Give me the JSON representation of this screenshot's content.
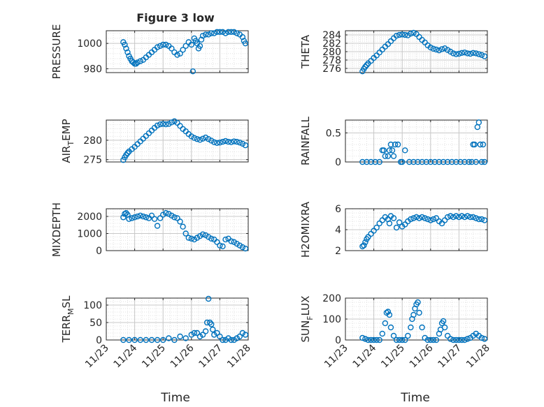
{
  "title": "Figure 3 low",
  "xlabel": "Time",
  "colors": {
    "marker": "#0072BD",
    "axis": "#262626",
    "grid": "#c8c8c8",
    "minorgrid": "#e2e2e2"
  },
  "chart_data": [
    {
      "type": "scatter",
      "ylabel": "PRESSURE",
      "ylabel_parts": [
        "PRESSURE"
      ],
      "xlim": [
        0,
        5
      ],
      "ylim": [
        977,
        1010
      ],
      "yticks": [
        980,
        1000
      ],
      "x": [
        0.6,
        0.65,
        0.7,
        0.75,
        0.8,
        0.85,
        0.9,
        0.95,
        1.0,
        1.05,
        1.1,
        1.2,
        1.3,
        1.4,
        1.5,
        1.6,
        1.7,
        1.8,
        1.9,
        2.0,
        2.1,
        2.2,
        2.3,
        2.4,
        2.5,
        2.6,
        2.7,
        2.8,
        2.9,
        3.0,
        3.05,
        3.1,
        3.15,
        3.2,
        3.25,
        3.3,
        3.35,
        3.4,
        3.5,
        3.6,
        3.7,
        3.8,
        3.9,
        4.0,
        4.1,
        4.2,
        4.3,
        4.4,
        4.5,
        4.6,
        4.7,
        4.8,
        4.85,
        4.9
      ],
      "y": [
        1001,
        999,
        996,
        993,
        990,
        988,
        986,
        985,
        984,
        984,
        985,
        986,
        987,
        989,
        991,
        993,
        995,
        997,
        998,
        999,
        999,
        998,
        996,
        993,
        991,
        992,
        995,
        998,
        1001,
        999,
        978,
        1004,
        1002,
        1000,
        996,
        998,
        1003,
        1006,
        1007,
        1007,
        1008,
        1008,
        1009,
        1009,
        1009,
        1008,
        1009,
        1009,
        1009,
        1008,
        1007,
        1005,
        1002,
        1000
      ]
    },
    {
      "type": "scatter",
      "ylabel": "THETA",
      "ylabel_parts": [
        "THETA"
      ],
      "xlim": [
        0,
        5
      ],
      "ylim": [
        275,
        285
      ],
      "yticks": [
        276,
        278,
        280,
        282,
        284
      ],
      "x": [
        0.6,
        0.65,
        0.7,
        0.75,
        0.8,
        0.9,
        1.0,
        1.1,
        1.2,
        1.3,
        1.4,
        1.5,
        1.6,
        1.7,
        1.8,
        1.9,
        2.0,
        2.1,
        2.2,
        2.3,
        2.4,
        2.5,
        2.6,
        2.7,
        2.8,
        2.9,
        3.0,
        3.1,
        3.2,
        3.3,
        3.4,
        3.5,
        3.6,
        3.7,
        3.8,
        3.9,
        4.0,
        4.1,
        4.2,
        4.3,
        4.4,
        4.5,
        4.6,
        4.7,
        4.8,
        4.9
      ],
      "y": [
        275.3,
        275.9,
        276.4,
        276.8,
        277.2,
        277.8,
        278.5,
        279.1,
        279.8,
        280.5,
        281.2,
        281.8,
        282.5,
        283.2,
        283.8,
        284.0,
        284.1,
        284.0,
        283.9,
        284.3,
        284.5,
        284.2,
        283.5,
        282.8,
        282.2,
        281.5,
        281.0,
        280.7,
        280.5,
        280.3,
        280.6,
        280.8,
        280.4,
        280.0,
        279.6,
        279.4,
        279.5,
        279.7,
        279.8,
        279.6,
        279.5,
        279.7,
        279.6,
        279.4,
        279.2,
        278.9
      ]
    },
    {
      "type": "scatter",
      "ylabel": "AIR_TEMP",
      "ylabel_parts": [
        "AIR",
        "T",
        "EMP"
      ],
      "xlim": [
        0,
        5
      ],
      "ylim": [
        274.4,
        285.2
      ],
      "yticks": [
        275,
        280
      ],
      "x": [
        0.6,
        0.65,
        0.7,
        0.75,
        0.8,
        0.9,
        1.0,
        1.1,
        1.2,
        1.3,
        1.4,
        1.5,
        1.6,
        1.7,
        1.8,
        1.9,
        2.0,
        2.1,
        2.2,
        2.3,
        2.4,
        2.5,
        2.6,
        2.7,
        2.8,
        2.9,
        3.0,
        3.1,
        3.2,
        3.3,
        3.4,
        3.5,
        3.6,
        3.7,
        3.8,
        3.9,
        4.0,
        4.1,
        4.2,
        4.3,
        4.4,
        4.5,
        4.6,
        4.7,
        4.8,
        4.9
      ],
      "y": [
        274.9,
        275.6,
        276.2,
        276.7,
        277.1,
        277.7,
        278.3,
        279.0,
        279.7,
        280.4,
        281.1,
        281.8,
        282.5,
        283.2,
        283.8,
        284.1,
        284.2,
        284.1,
        284.2,
        284.6,
        284.9,
        284.5,
        283.7,
        282.9,
        282.3,
        281.6,
        281.0,
        280.6,
        280.3,
        280.1,
        280.4,
        280.7,
        280.3,
        279.9,
        279.5,
        279.3,
        279.4,
        279.6,
        279.8,
        279.6,
        279.5,
        279.7,
        279.6,
        279.4,
        279.1,
        278.7
      ]
    },
    {
      "type": "scatter",
      "ylabel": "RAINFALL",
      "ylabel_parts": [
        "RAINFALL"
      ],
      "xlim": [
        0,
        5
      ],
      "ylim": [
        0,
        0.72
      ],
      "yticks": [
        0,
        0.5
      ],
      "x": [
        0.6,
        0.75,
        0.9,
        1.05,
        1.2,
        1.3,
        1.35,
        1.4,
        1.5,
        1.55,
        1.6,
        1.65,
        1.7,
        1.75,
        1.85,
        1.95,
        2.0,
        2.1,
        2.25,
        2.4,
        2.55,
        2.7,
        2.85,
        3.0,
        3.15,
        3.3,
        3.45,
        3.6,
        3.75,
        3.9,
        4.05,
        4.2,
        4.35,
        4.45,
        4.5,
        4.55,
        4.6,
        4.65,
        4.7,
        4.75,
        4.8,
        4.85,
        4.9
      ],
      "y": [
        0,
        0,
        0,
        0,
        0,
        0.2,
        0.2,
        0.1,
        0.1,
        0.2,
        0.3,
        0.2,
        0.1,
        0.3,
        0.3,
        0,
        0,
        0.2,
        0,
        0,
        0,
        0,
        0,
        0,
        0,
        0,
        0,
        0,
        0,
        0,
        0,
        0,
        0,
        0,
        0.3,
        0.3,
        0,
        0.6,
        0.68,
        0.3,
        0,
        0.3,
        0
      ]
    },
    {
      "type": "scatter",
      "ylabel": "MIXDEPTH",
      "ylabel_parts": [
        "MIXDEPTH"
      ],
      "xlim": [
        0,
        5
      ],
      "ylim": [
        0,
        2450
      ],
      "yticks": [
        0,
        1000,
        2000
      ],
      "x": [
        0.6,
        0.65,
        0.7,
        0.75,
        0.8,
        0.9,
        1.0,
        1.1,
        1.2,
        1.3,
        1.4,
        1.5,
        1.6,
        1.7,
        1.8,
        1.9,
        2.0,
        2.1,
        2.2,
        2.3,
        2.4,
        2.5,
        2.6,
        2.7,
        2.8,
        2.9,
        3.0,
        3.1,
        3.2,
        3.3,
        3.4,
        3.5,
        3.6,
        3.7,
        3.8,
        3.9,
        4.0,
        4.1,
        4.2,
        4.3,
        4.4,
        4.5,
        4.6,
        4.7,
        4.8,
        4.9
      ],
      "y": [
        1950,
        2150,
        2200,
        2100,
        1850,
        1900,
        1950,
        2000,
        2050,
        2000,
        1950,
        1900,
        2050,
        1850,
        1450,
        1900,
        2100,
        2200,
        2150,
        2050,
        1950,
        1900,
        1700,
        1400,
        1000,
        750,
        700,
        650,
        750,
        850,
        950,
        900,
        800,
        700,
        650,
        500,
        300,
        250,
        650,
        700,
        550,
        500,
        400,
        300,
        200,
        120
      ]
    },
    {
      "type": "scatter",
      "ylabel": "H2OMIXRA",
      "ylabel_parts": [
        "H2OMIXRA"
      ],
      "xlim": [
        0,
        5
      ],
      "ylim": [
        2,
        6
      ],
      "yticks": [
        2,
        4,
        6
      ],
      "x": [
        0.6,
        0.65,
        0.7,
        0.75,
        0.8,
        0.9,
        1.0,
        1.1,
        1.2,
        1.3,
        1.4,
        1.5,
        1.55,
        1.6,
        1.7,
        1.8,
        1.9,
        2.0,
        2.1,
        2.2,
        2.3,
        2.4,
        2.5,
        2.6,
        2.7,
        2.8,
        2.9,
        3.0,
        3.1,
        3.2,
        3.3,
        3.4,
        3.5,
        3.6,
        3.7,
        3.8,
        3.9,
        4.0,
        4.1,
        4.2,
        4.3,
        4.4,
        4.5,
        4.6,
        4.7,
        4.8,
        4.9
      ],
      "y": [
        2.4,
        2.5,
        2.8,
        3.1,
        3.3,
        3.6,
        3.9,
        4.2,
        4.6,
        4.9,
        5.2,
        5.0,
        4.6,
        5.3,
        5.1,
        4.2,
        4.7,
        4.3,
        4.5,
        4.8,
        5.0,
        5.1,
        5.2,
        5.1,
        5.2,
        5.1,
        5.0,
        4.9,
        5.0,
        5.1,
        4.8,
        4.6,
        4.9,
        5.2,
        5.3,
        5.2,
        5.3,
        5.2,
        5.3,
        5.2,
        5.3,
        5.2,
        5.2,
        5.1,
        5.0,
        5.0,
        4.9
      ]
    },
    {
      "type": "scatter",
      "ylabel": "TERR_MSL",
      "ylabel_parts": [
        "TERR",
        "M",
        "SL"
      ],
      "xlim": [
        0,
        5
      ],
      "ylim": [
        0,
        120
      ],
      "yticks": [
        0,
        50,
        100
      ],
      "x": [
        0.6,
        0.8,
        1.0,
        1.2,
        1.4,
        1.6,
        1.8,
        2.0,
        2.2,
        2.4,
        2.6,
        2.8,
        3.0,
        3.1,
        3.2,
        3.3,
        3.4,
        3.5,
        3.55,
        3.6,
        3.65,
        3.7,
        3.75,
        3.8,
        3.9,
        4.0,
        4.1,
        4.2,
        4.3,
        4.4,
        4.5,
        4.6,
        4.7,
        4.8,
        4.9
      ],
      "y": [
        0,
        0,
        0,
        0,
        0,
        0,
        0,
        0,
        5,
        0,
        10,
        5,
        15,
        20,
        20,
        10,
        15,
        25,
        50,
        118,
        50,
        45,
        30,
        15,
        20,
        10,
        0,
        0,
        5,
        0,
        0,
        5,
        10,
        20,
        15
      ]
    },
    {
      "type": "scatter",
      "ylabel": "SUN_FLUX",
      "ylabel_parts": [
        "SUN",
        "F",
        "LUX"
      ],
      "xlim": [
        0,
        5
      ],
      "ylim": [
        0,
        200
      ],
      "yticks": [
        0,
        100,
        200
      ],
      "x": [
        0.6,
        0.7,
        0.8,
        0.9,
        1.0,
        1.1,
        1.2,
        1.3,
        1.4,
        1.45,
        1.5,
        1.55,
        1.6,
        1.7,
        1.8,
        1.9,
        2.0,
        2.1,
        2.2,
        2.3,
        2.35,
        2.4,
        2.45,
        2.5,
        2.55,
        2.6,
        2.7,
        2.8,
        2.9,
        3.0,
        3.1,
        3.2,
        3.3,
        3.35,
        3.4,
        3.45,
        3.5,
        3.6,
        3.7,
        3.8,
        3.9,
        4.0,
        4.1,
        4.2,
        4.3,
        4.4,
        4.5,
        4.6,
        4.7,
        4.8,
        4.9
      ],
      "y": [
        10,
        5,
        0,
        0,
        0,
        0,
        0,
        30,
        80,
        130,
        135,
        120,
        60,
        20,
        0,
        0,
        0,
        0,
        20,
        60,
        100,
        120,
        150,
        170,
        180,
        130,
        60,
        10,
        0,
        0,
        0,
        0,
        30,
        50,
        80,
        90,
        60,
        20,
        5,
        0,
        0,
        0,
        0,
        0,
        5,
        10,
        20,
        30,
        20,
        10,
        5
      ]
    }
  ],
  "xticklabels": [
    "11/23",
    "11/24",
    "11/25",
    "11/26",
    "11/27",
    "11/28"
  ]
}
